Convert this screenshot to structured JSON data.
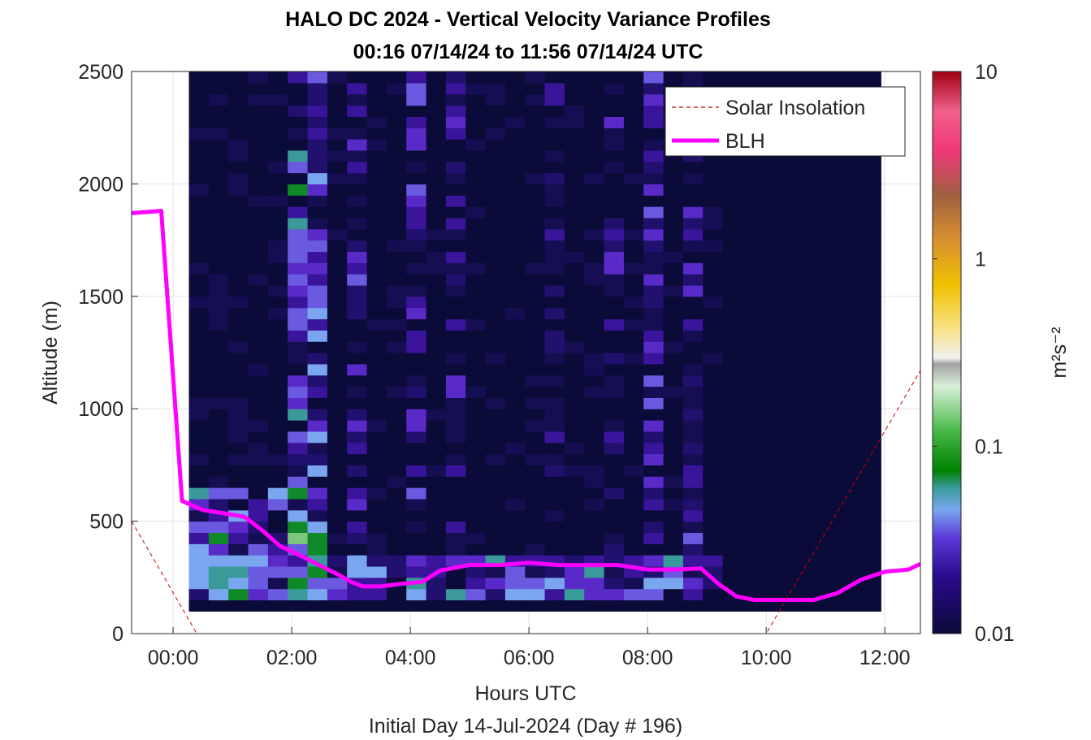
{
  "chart_data": {
    "type": "heatmap",
    "title": "HALO DC 2024 - Vertical Velocity Variance Profiles",
    "subtitle": "00:16 07/14/24 to 11:56 07/14/24  UTC",
    "xlabel": "Hours UTC",
    "xlabel2": "Initial Day 14-Jul-2024 (Day # 196)",
    "ylabel": "Altitude (m)",
    "xlim": [
      -0.7,
      12.6
    ],
    "ylim": [
      0,
      2500
    ],
    "grid": true,
    "x_ticks": [
      0,
      2,
      4,
      6,
      8,
      10,
      12
    ],
    "x_tick_labels": [
      "00:00",
      "02:00",
      "04:00",
      "06:00",
      "08:00",
      "10:00",
      "12:00"
    ],
    "y_ticks": [
      0,
      500,
      1000,
      1500,
      2000,
      2500
    ],
    "y_tick_labels": [
      "0",
      "500",
      "1000",
      "1500",
      "2000",
      "2500"
    ],
    "colorbar": {
      "label": "m²s⁻²",
      "scale": "log",
      "lim": [
        0.01,
        10
      ],
      "ticks": [
        0.01,
        0.1,
        1,
        10
      ],
      "tick_labels": [
        "0.01",
        "0.1",
        "1",
        "10"
      ]
    },
    "legend": {
      "placement": "top-right",
      "entries": [
        {
          "label": "Solar Insolation",
          "color": "#cc0000",
          "style": "dashed"
        },
        {
          "label": "BLH",
          "color": "#ff00ff",
          "style": "solid"
        }
      ]
    },
    "heatmap": {
      "x_start": 0.266,
      "x_end": 11.933,
      "altitude_bins": [
        100,
        150,
        200,
        250,
        300,
        350,
        400,
        450,
        500,
        550,
        600,
        650,
        700,
        750,
        800,
        850,
        900,
        950,
        1000,
        1050,
        1100,
        1150,
        1200,
        1250,
        1300,
        1350,
        1400,
        1450,
        1500,
        1550,
        1600,
        1650,
        1700,
        1750,
        1800,
        1850,
        1900,
        1950,
        2000,
        2050,
        2100,
        2150,
        2200,
        2250,
        2300,
        2350,
        2400,
        2450,
        2500
      ],
      "summary": "Variance values between 0.01 and 0.35 m2s-2; highest (0.1-0.35, green) below ~600 m between 00:20 and 02:30 UTC and in vertical streaks up to 2500 m between 00:30 and 08:30 UTC; background mostly ~0.01."
    },
    "series": [
      {
        "name": "BLH",
        "x": [
          -0.7,
          -0.2,
          0.15,
          0.5,
          1.2,
          1.5,
          1.8,
          2.2,
          2.5,
          2.8,
          3.0,
          3.2,
          3.5,
          3.8,
          4.2,
          4.5,
          5.0,
          5.5,
          6.0,
          6.5,
          7.0,
          7.5,
          8.0,
          8.5,
          8.9,
          9.2,
          9.5,
          9.8,
          10.0,
          10.4,
          10.8,
          11.2,
          11.6,
          12.0,
          12.4,
          12.6
        ],
        "y": [
          1870,
          1880,
          590,
          550,
          520,
          460,
          390,
          340,
          300,
          260,
          230,
          210,
          210,
          220,
          230,
          280,
          305,
          305,
          315,
          305,
          305,
          305,
          285,
          285,
          290,
          220,
          165,
          150,
          150,
          150,
          150,
          180,
          240,
          275,
          285,
          310
        ]
      },
      {
        "name": "Solar Insolation",
        "x": [
          -0.7,
          0.4,
          10.0,
          12.6
        ],
        "y": [
          500,
          0,
          0,
          1170
        ]
      }
    ]
  }
}
